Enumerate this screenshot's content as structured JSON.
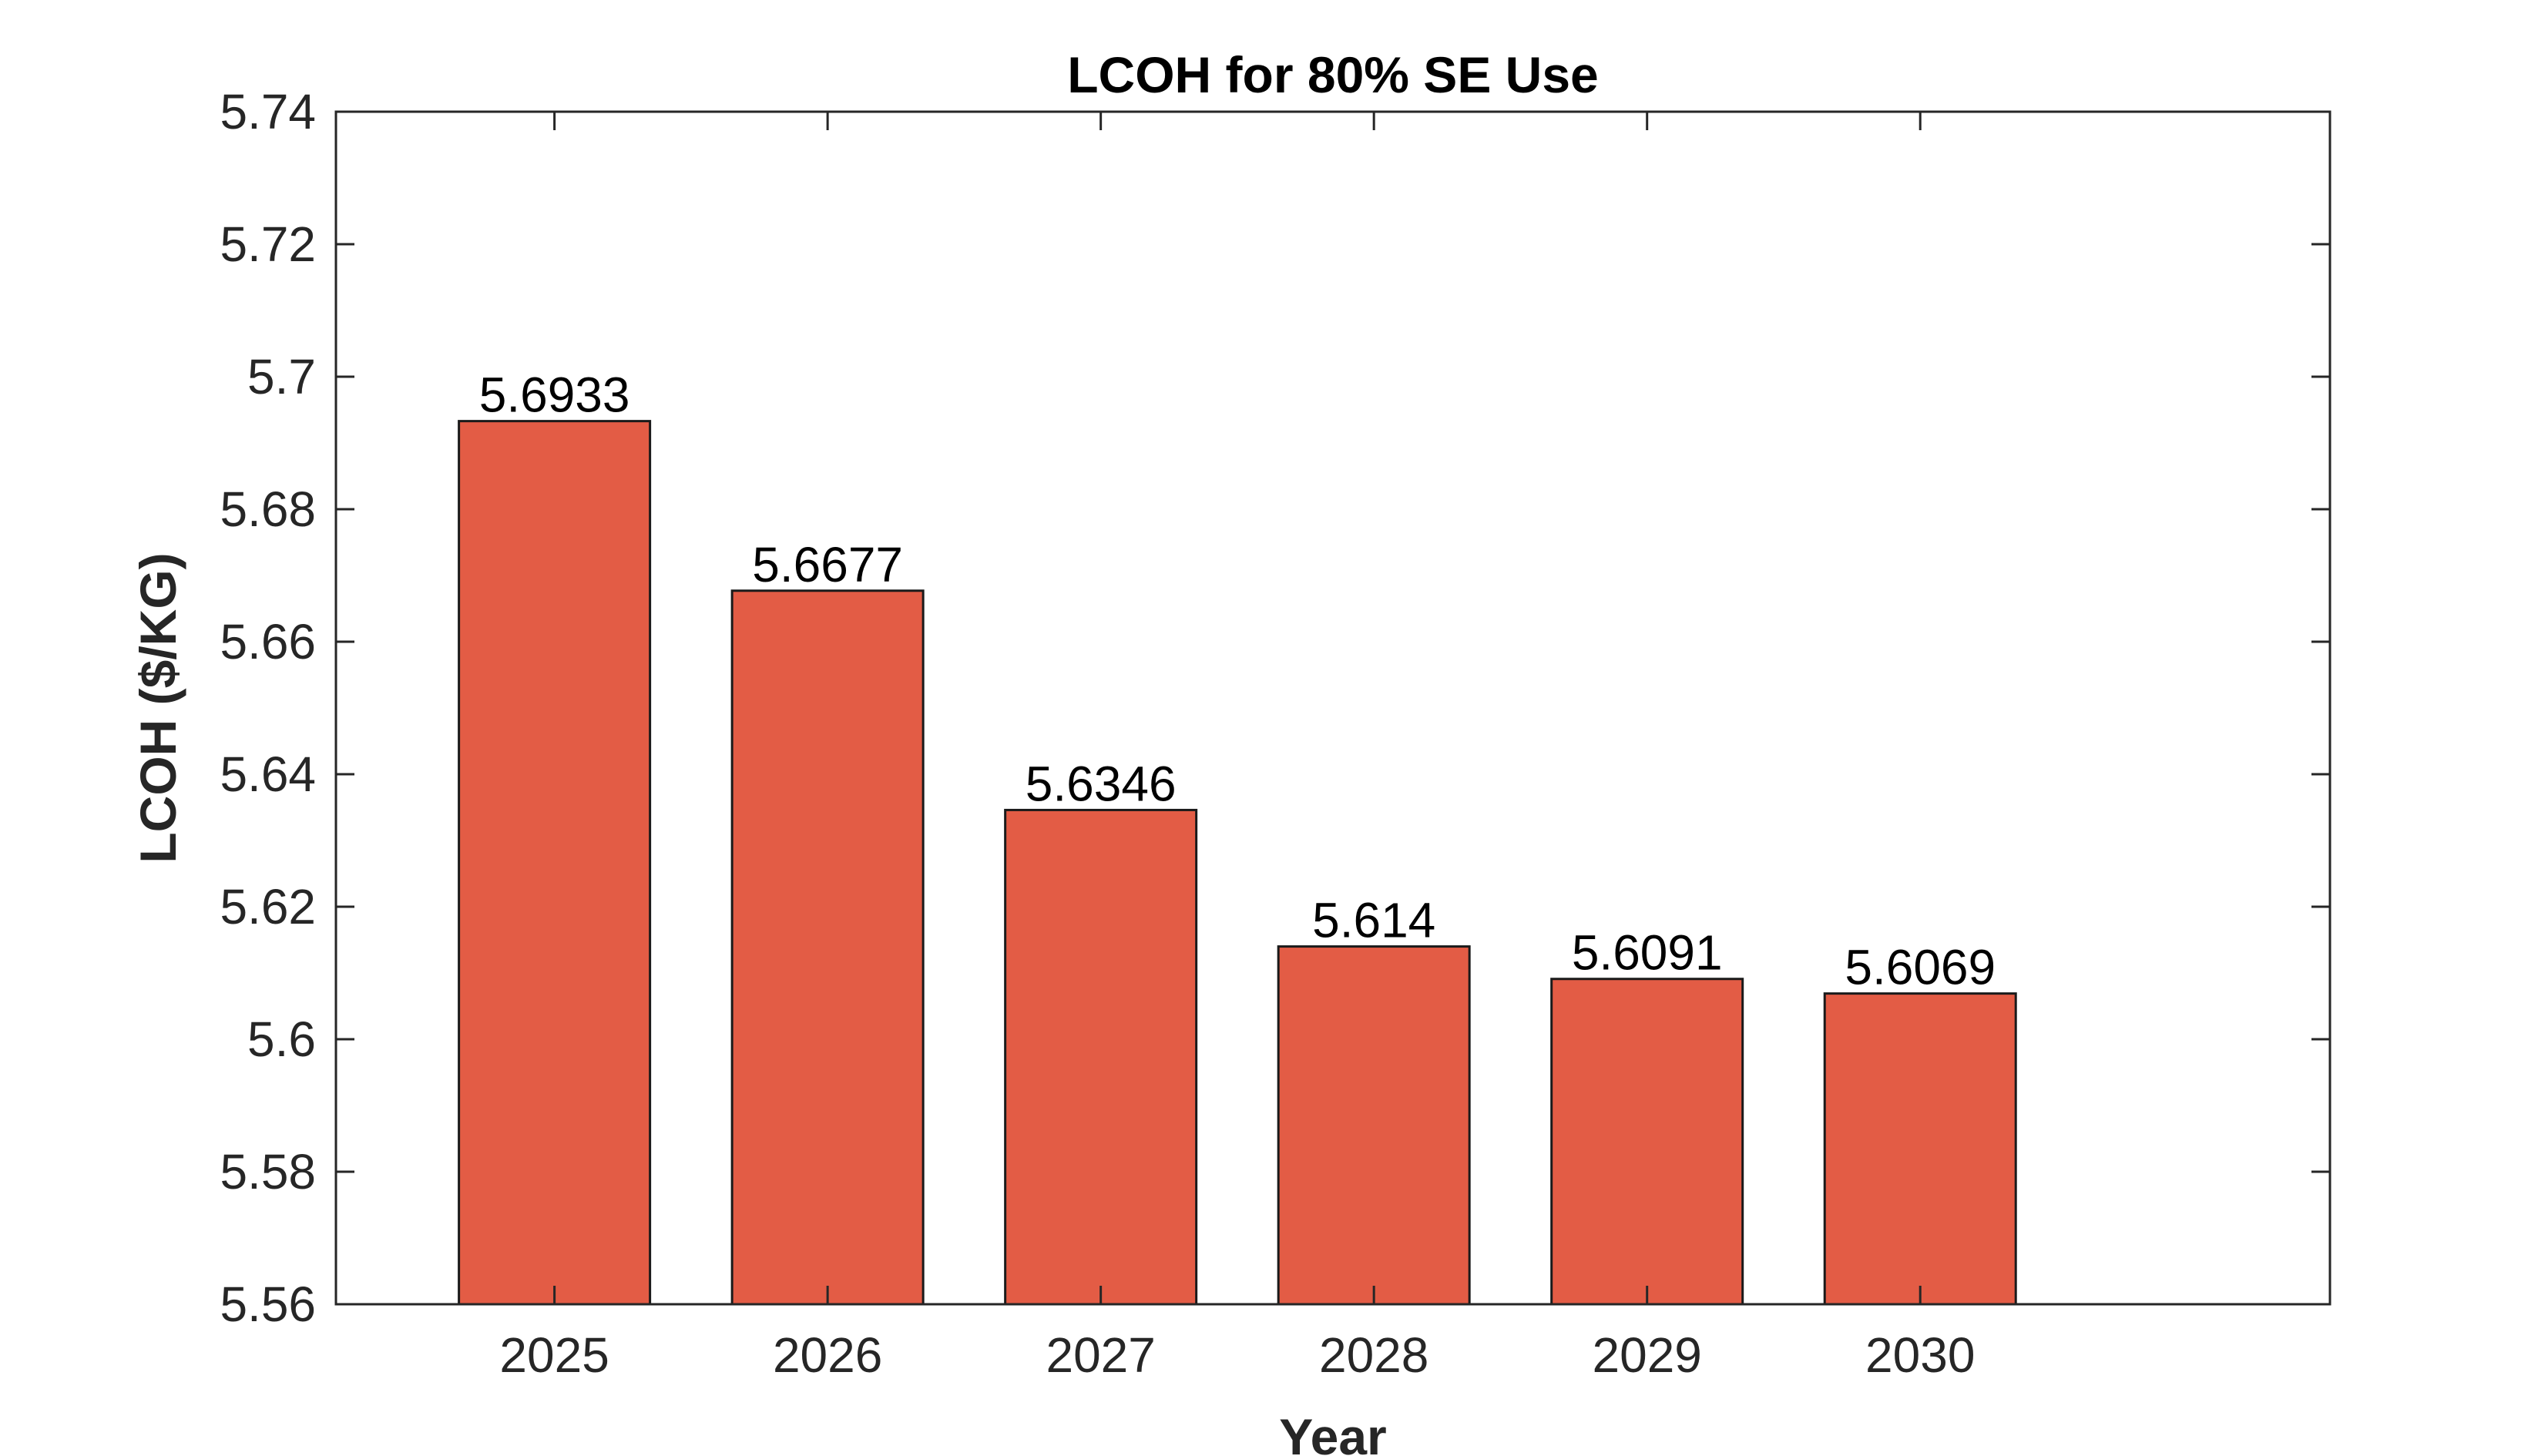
{
  "chart_data": {
    "type": "bar",
    "title": "LCOH for 80% SE Use",
    "xlabel": "Year",
    "ylabel": "LCOH ($/KG)",
    "categories": [
      "2025",
      "2026",
      "2027",
      "2028",
      "2029",
      "2030"
    ],
    "values": [
      5.6933,
      5.6677,
      5.6346,
      5.614,
      5.6091,
      5.6069
    ],
    "value_labels": [
      "5.6933",
      "5.6677",
      "5.6346",
      "5.614",
      "5.6091",
      "5.6069"
    ],
    "ylim": [
      5.56,
      5.74
    ],
    "yticks": [
      5.56,
      5.58,
      5.6,
      5.62,
      5.64,
      5.66,
      5.68,
      5.7,
      5.72,
      5.74
    ],
    "ytick_labels": [
      "5.56",
      "5.58",
      "5.6",
      "5.62",
      "5.64",
      "5.66",
      "5.68",
      "5.7",
      "5.72",
      "5.74"
    ],
    "xlim": [
      2024.2,
      2031.5
    ],
    "grid": false,
    "legend": "none",
    "colors": {
      "bar": "#E35C45",
      "axis": "#262626"
    }
  }
}
